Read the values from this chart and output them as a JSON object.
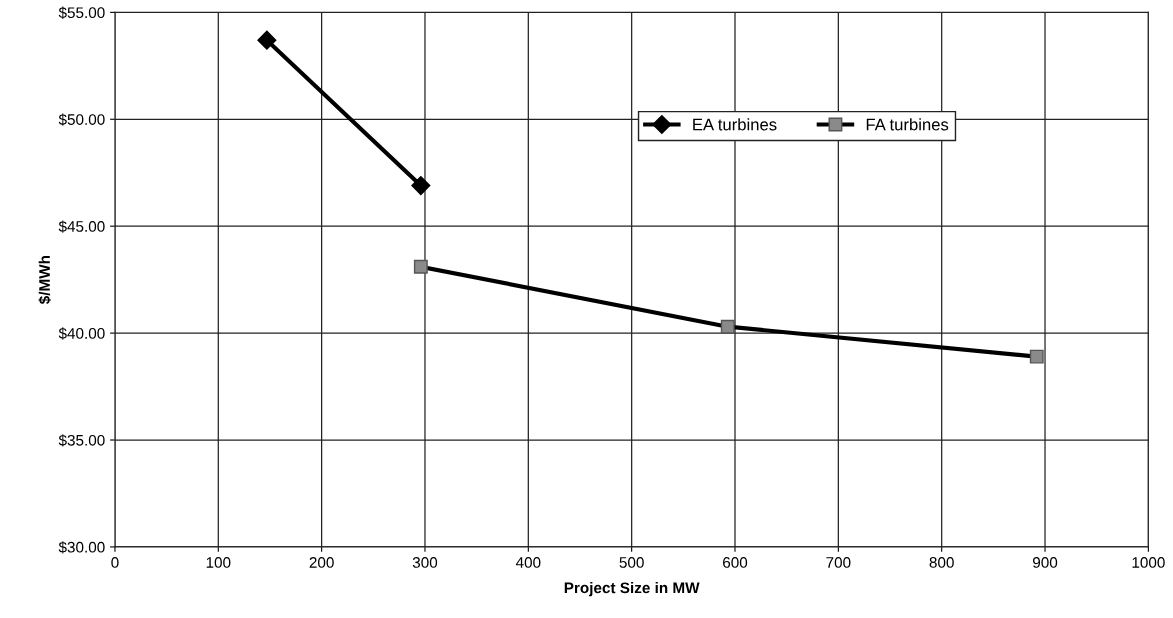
{
  "chart_data": {
    "type": "line",
    "xlabel": "Project Size in MW",
    "ylabel": "$/MWh",
    "series": [
      {
        "name": "EA turbines",
        "color": "#000000",
        "marker": "diamond",
        "x": [
          147,
          296
        ],
        "values": [
          53.7,
          46.9
        ]
      },
      {
        "name": "FA turbines",
        "color": "#000000",
        "marker": "square",
        "x": [
          296,
          593,
          892
        ],
        "values": [
          43.1,
          40.3,
          38.9
        ]
      }
    ],
    "xlim": [
      0,
      1000
    ],
    "xticks": [
      0,
      100,
      200,
      300,
      400,
      500,
      600,
      700,
      800,
      900,
      1000
    ],
    "ylim": [
      30,
      55
    ],
    "yticks": [
      {
        "value": 30,
        "label": "$30.00"
      },
      {
        "value": 35,
        "label": "$35.00"
      },
      {
        "value": 40,
        "label": "$40.00"
      },
      {
        "value": 45,
        "label": "$45.00"
      },
      {
        "value": 50,
        "label": "$50.00"
      },
      {
        "value": 55,
        "label": "$55.00"
      }
    ],
    "grid": true,
    "legend": "top center",
    "line_style": "solid"
  }
}
